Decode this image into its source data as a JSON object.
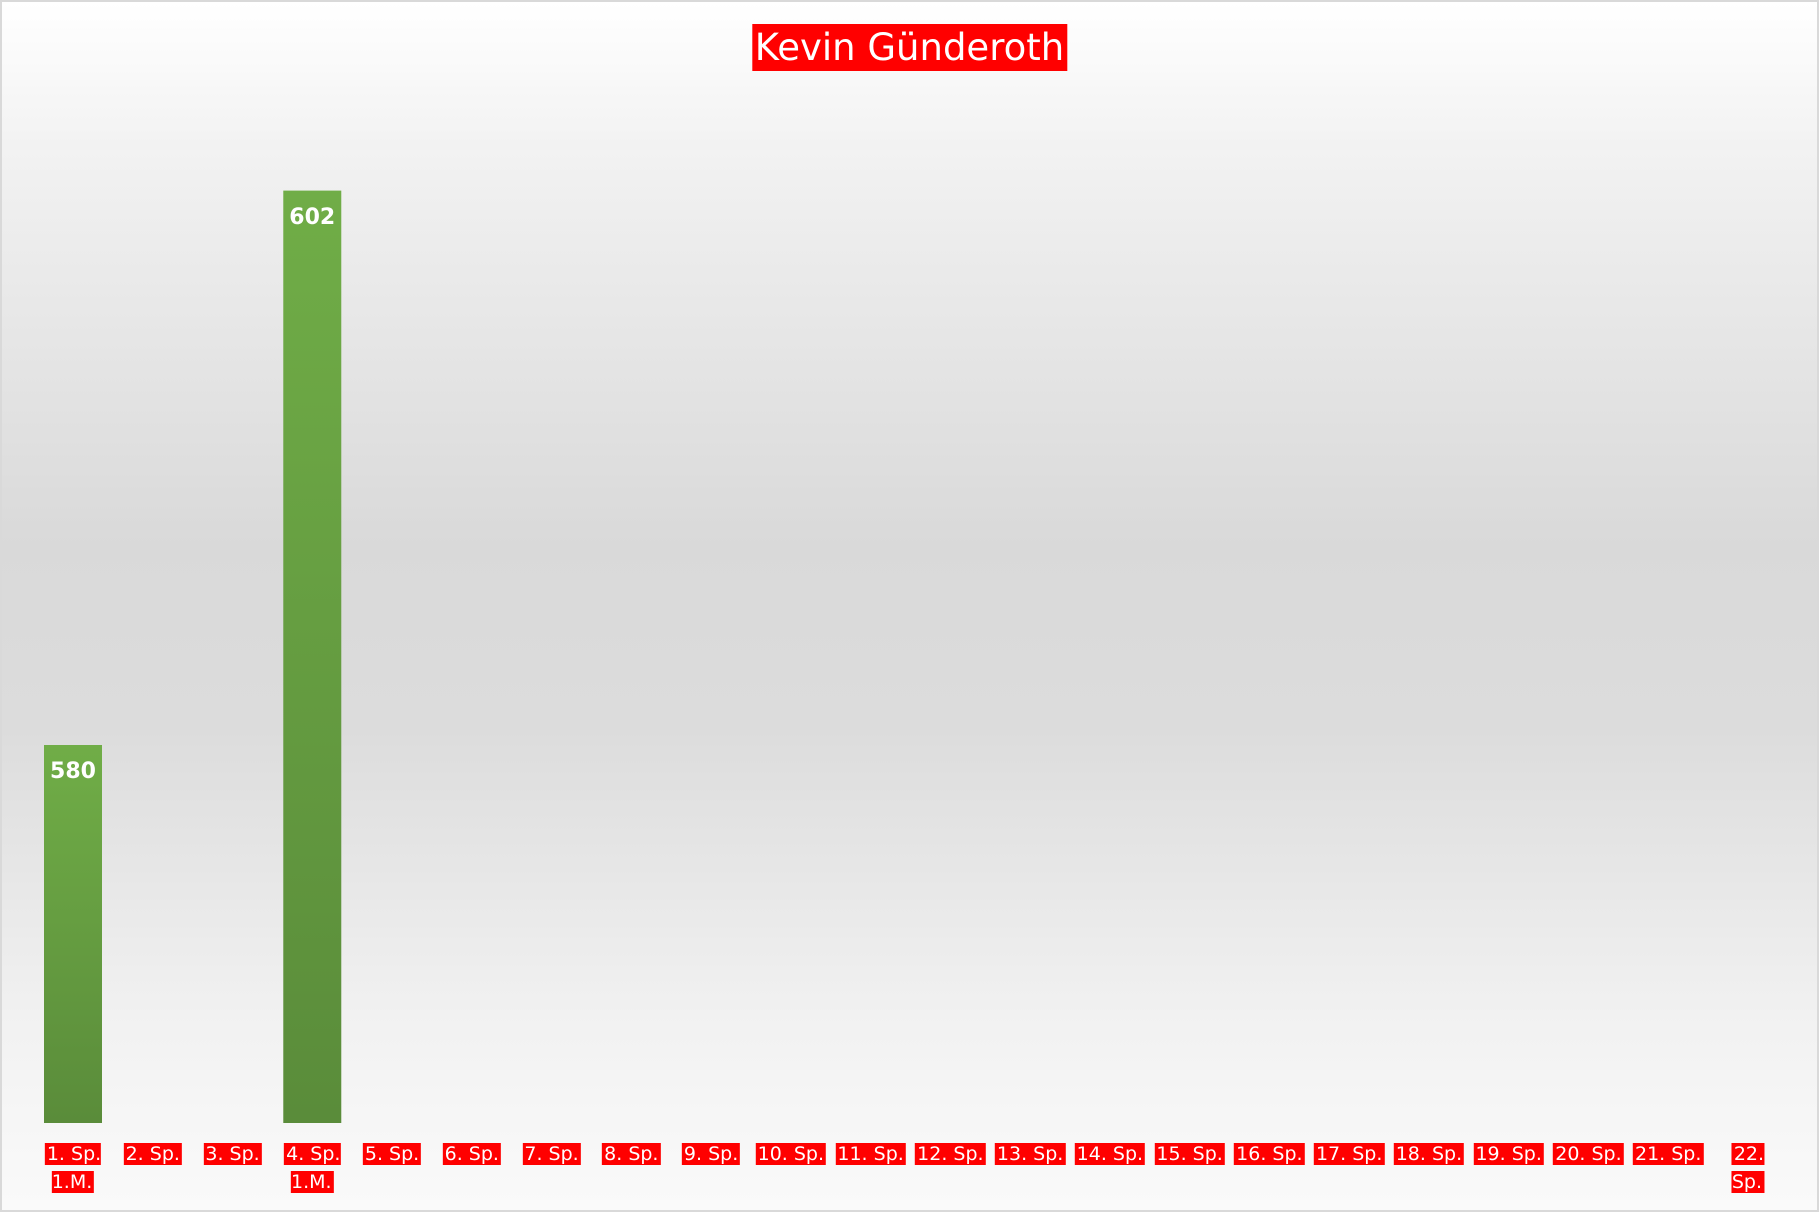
{
  "chart_data": {
    "type": "bar",
    "title": "Kevin Günderoth",
    "categories": [
      "1. Sp.\n1.M.",
      "2. Sp.",
      "3. Sp.",
      "4. Sp.\n1.M.",
      "5. Sp.",
      "6. Sp.",
      "7. Sp.",
      "8. Sp.",
      "9. Sp.",
      "10. Sp.",
      "11. Sp.",
      "12. Sp.",
      "13. Sp.",
      "14. Sp.",
      "15. Sp.",
      "16. Sp.",
      "17. Sp.",
      "18. Sp.",
      "19. Sp.",
      "20. Sp.",
      "21. Sp.",
      "22. Sp."
    ],
    "values": [
      580,
      null,
      null,
      602,
      null,
      null,
      null,
      null,
      null,
      null,
      null,
      null,
      null,
      null,
      null,
      null,
      null,
      null,
      null,
      null,
      null,
      null
    ],
    "color": "#70ad47",
    "ylim": [
      565,
      605
    ]
  }
}
